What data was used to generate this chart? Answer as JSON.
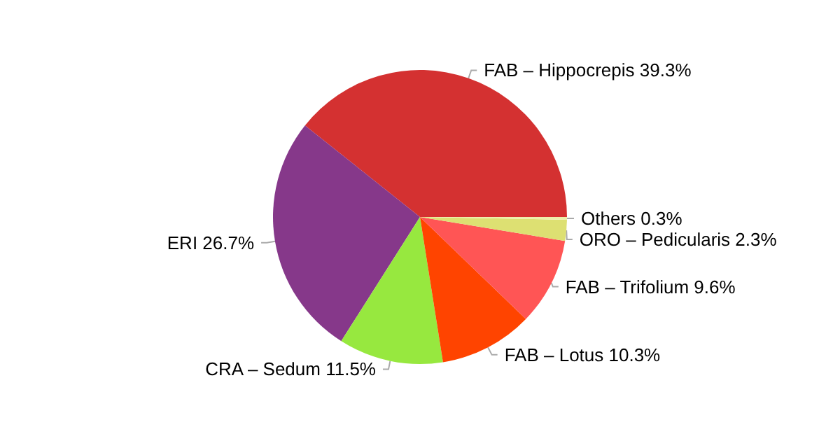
{
  "chart_data": {
    "type": "pie",
    "categories": [
      "FAB – Hippocrepis",
      "ERI",
      "CRA – Sedum",
      "FAB – Lotus",
      "FAB – Trifolium",
      "ORO – Pedicularis",
      "Others"
    ],
    "values": [
      39.3,
      26.7,
      11.5,
      10.3,
      9.6,
      2.3,
      0.3
    ],
    "value_labels": [
      "39.3%",
      "26.7%",
      "11.5%",
      "10.3%",
      "9.6%",
      "2.3%",
      "0.3%"
    ],
    "colors": [
      "#d43131",
      "#86388a",
      "#97e83f",
      "#ff4400",
      "#ff5555",
      "#dde072",
      "#eeeeaa"
    ],
    "legend": false
  }
}
